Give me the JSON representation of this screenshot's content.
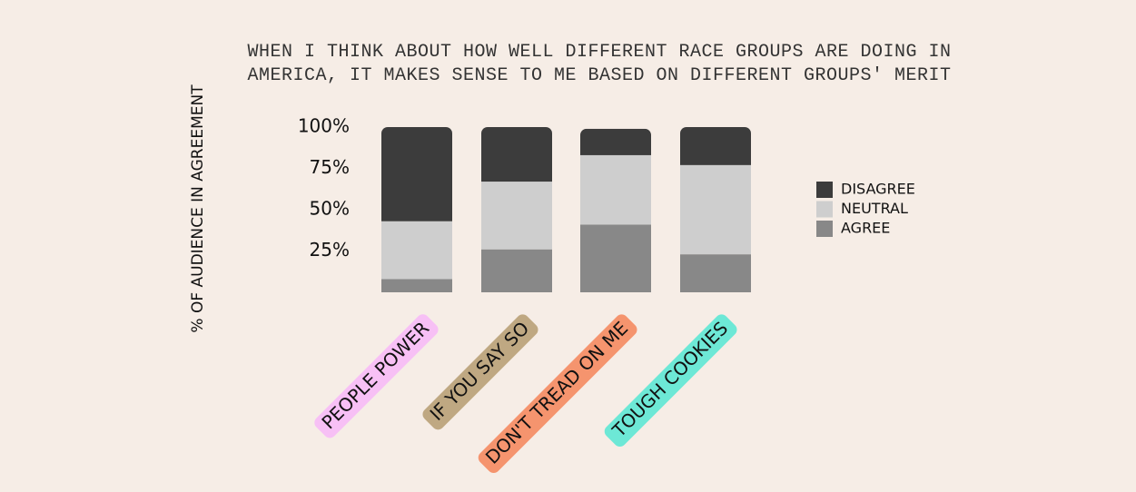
{
  "chart_data": {
    "type": "stacked-bar",
    "title": "WHEN I THINK ABOUT HOW WELL DIFFERENT RACE GROUPS ARE DOING IN AMERICA, IT MAKES SENSE TO ME BASED ON DIFFERENT GROUPS' MERIT",
    "y_label": "% OF AUDIENCE IN AGREEMENT",
    "categories": [
      "PEOPLE POWER",
      "IF YOU SAY SO",
      "DON'T TREAD ON ME",
      "TOUGH COOKIES"
    ],
    "category_colors": [
      "#f7c0f5",
      "#bfa882",
      "#f5946e",
      "#6de8d6"
    ],
    "series": [
      {
        "name": "AGREE",
        "color": "#888888",
        "values": [
          8,
          26,
          41,
          23
        ]
      },
      {
        "name": "NEUTRAL",
        "color": "#cecece",
        "values": [
          35,
          41,
          42,
          54
        ]
      },
      {
        "name": "DISAGREE",
        "color": "#3c3c3c",
        "values": [
          57,
          33,
          16,
          23
        ]
      }
    ],
    "ylim": [
      0,
      100
    ],
    "yticks": [
      {
        "value": 25,
        "label": "25%"
      },
      {
        "value": 50,
        "label": "50%"
      },
      {
        "value": 75,
        "label": "75%"
      },
      {
        "value": 100,
        "label": "100%"
      }
    ],
    "legend": "right"
  }
}
